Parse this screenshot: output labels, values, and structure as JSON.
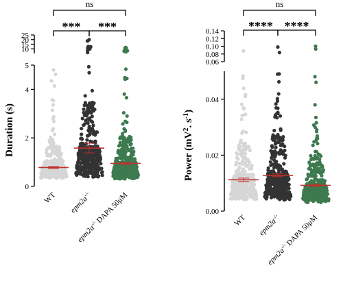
{
  "chart_data": [
    {
      "type": "scatter",
      "subtype": "beeswarm",
      "ylabel": "Duration (s)",
      "categories": [
        "WT",
        "epm2a-/-",
        "epm2a-/- DAPA 50μM"
      ],
      "category_parts": [
        {
          "main": "WT",
          "sup": ""
        },
        {
          "main": "epm2a",
          "sup": "-/-"
        },
        {
          "main": "epm2a",
          "sup": "-/-",
          "suffix": " DAPA 50μM"
        }
      ],
      "broken_axis": {
        "lower": {
          "range": [
            0,
            5
          ],
          "ticks": [
            "0",
            "2",
            "4"
          ]
        },
        "upper": {
          "range": [
            5,
            25
          ],
          "ticks": [
            "5",
            "10",
            "15",
            "20",
            "25"
          ]
        }
      },
      "series": [
        {
          "category": "WT",
          "color": "#d6d6d6",
          "mean": 0.78,
          "sem": 0.04,
          "max": 4.8,
          "min": 0.35
        },
        {
          "category": "epm2a-/-",
          "color": "#333333",
          "mean": 1.58,
          "sem": 0.2,
          "max": 20,
          "min": 0.38
        },
        {
          "category": "epm2a-/- DAPA 50μM",
          "color": "#3d7a4f",
          "mean": 0.95,
          "sem": 0.05,
          "max": 11.5,
          "min": 0.3
        }
      ],
      "significance": [
        {
          "pair": [
            "WT",
            "epm2a-/-"
          ],
          "label": "***"
        },
        {
          "pair": [
            "epm2a-/-",
            "epm2a-/- DAPA 50μM"
          ],
          "label": "***"
        },
        {
          "pair": [
            "WT",
            "epm2a-/- DAPA 50μM"
          ],
          "label": "ns"
        }
      ]
    },
    {
      "type": "scatter",
      "subtype": "beeswarm",
      "ylabel": "Power (mV2. s-1)",
      "ylabel_parts": {
        "pre": "Power (mV",
        "sup1": "2",
        "mid": ". s",
        "sup2": "-1",
        "post": ")"
      },
      "categories": [
        "WT",
        "epm2a-/-",
        "epm2a-/- DAPA 50μM"
      ],
      "broken_axis": {
        "lower": {
          "range": [
            0,
            0.05
          ],
          "ticks": [
            "0.00",
            "0.02",
            "0.04"
          ]
        },
        "upper": {
          "range": [
            0.06,
            0.14
          ],
          "ticks": [
            "0.06",
            "0.08",
            "0.10",
            "0.12",
            "0.14"
          ]
        }
      },
      "series": [
        {
          "category": "WT",
          "color": "#d6d6d6",
          "mean": 0.0112,
          "sem": 0.0006,
          "max": 0.088,
          "min": 0.004
        },
        {
          "category": "epm2a-/-",
          "color": "#333333",
          "mean": 0.0128,
          "sem": 0.0005,
          "max": 0.098,
          "min": 0.004
        },
        {
          "category": "epm2a-/- DAPA 50μM",
          "color": "#3d7a4f",
          "mean": 0.0092,
          "sem": 0.0004,
          "max": 0.1,
          "min": 0.003
        }
      ],
      "significance": [
        {
          "pair": [
            "WT",
            "epm2a-/-"
          ],
          "label": "****"
        },
        {
          "pair": [
            "epm2a-/-",
            "epm2a-/- DAPA 50μM"
          ],
          "label": "****"
        },
        {
          "pair": [
            "WT",
            "epm2a-/- DAPA 50μM"
          ],
          "label": "ns"
        }
      ]
    }
  ]
}
